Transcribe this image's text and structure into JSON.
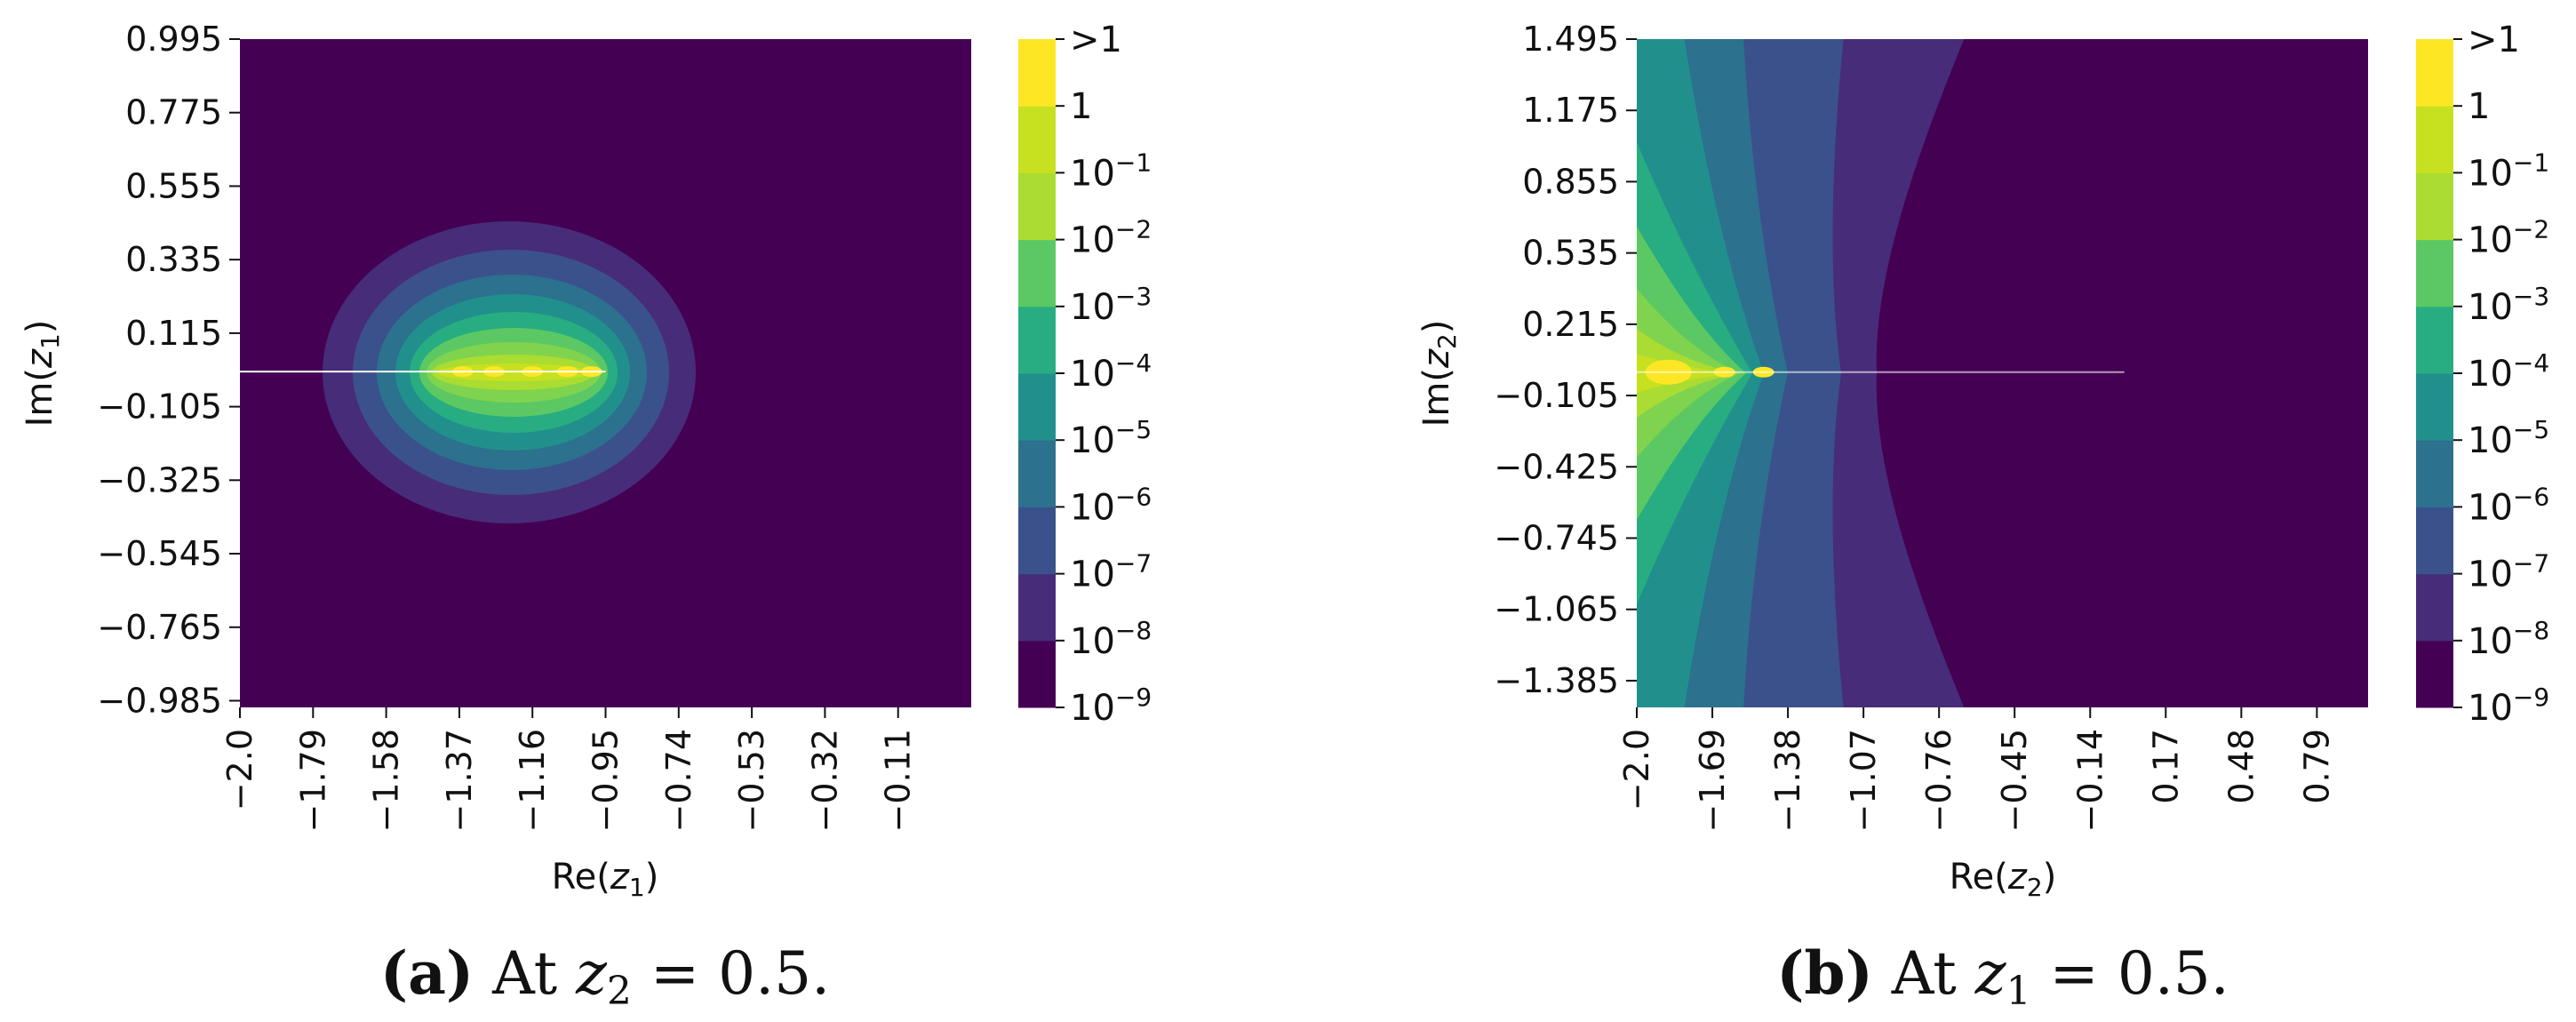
{
  "colormap": [
    "#440154",
    "#472c7a",
    "#3b518b",
    "#2c718e",
    "#21908d",
    "#27ad81",
    "#5cc863",
    "#aadc32",
    "#c7e020",
    "#fde725"
  ],
  "chart_data": [
    {
      "type": "heatmap",
      "panel": "a",
      "xlabel_main": "Re(",
      "xlabel_var": "z",
      "xlabel_sub": "1",
      "xlabel_close": ")",
      "ylabel_main": "Im(",
      "ylabel_var": "z",
      "ylabel_sub": "1",
      "ylabel_close": ")",
      "xlim": [
        -2.0,
        0.1
      ],
      "ylim": [
        -1.005,
        0.995
      ],
      "x_ticks": [
        -2.0,
        -1.79,
        -1.58,
        -1.37,
        -1.16,
        -0.95,
        -0.74,
        -0.53,
        -0.32,
        -0.11
      ],
      "x_tick_labels": [
        "−2.0",
        "−1.79",
        "−1.58",
        "−1.37",
        "−1.16",
        "−0.95",
        "−0.74",
        "−0.53",
        "−0.32",
        "−0.11"
      ],
      "y_ticks": [
        0.995,
        0.775,
        0.555,
        0.335,
        0.115,
        -0.105,
        -0.325,
        -0.545,
        -0.765,
        -0.985
      ],
      "y_tick_labels": [
        "0.995",
        "0.775",
        "0.555",
        "0.335",
        "0.115",
        "−0.105",
        "−0.325",
        "−0.545",
        "−0.765",
        "−0.985"
      ],
      "branch_cut": {
        "x": [
          -2.0,
          -0.95
        ],
        "y": 0.0
      },
      "peaks": [
        {
          "x": -1.36,
          "y": 0.0
        },
        {
          "x": -1.27,
          "y": 0.0
        },
        {
          "x": -1.16,
          "y": 0.0
        },
        {
          "x": -1.06,
          "y": 0.0
        },
        {
          "x": -0.99,
          "y": 0.0
        }
      ],
      "colorbar": {
        "tick_bases": [
          "",
          "",
          "10",
          "10",
          "10",
          "10",
          "10",
          "10",
          "10",
          "10",
          "10"
        ],
        "tick_exps": [
          "",
          "",
          "−1",
          "−2",
          "−3",
          "−4",
          "−5",
          "−6",
          "−7",
          "−8",
          "−9"
        ],
        "tick_plain": [
          ">1",
          "1",
          "",
          "",
          "",
          "",
          "",
          "",
          "",
          "",
          ""
        ]
      },
      "caption": {
        "letter": "(a)",
        "text": " At ",
        "var": "z",
        "sub": "2",
        "rest": " = 0.5."
      }
    },
    {
      "type": "heatmap",
      "panel": "b",
      "xlabel_main": "Re(",
      "xlabel_var": "z",
      "xlabel_sub": "2",
      "xlabel_close": ")",
      "ylabel_main": "Im(",
      "ylabel_var": "z",
      "ylabel_sub": "2",
      "ylabel_close": ")",
      "xlim": [
        -2.0,
        1.0
      ],
      "ylim": [
        -1.505,
        1.495
      ],
      "x_ticks": [
        -2.0,
        -1.69,
        -1.38,
        -1.07,
        -0.76,
        -0.45,
        -0.14,
        0.17,
        0.48,
        0.79
      ],
      "x_tick_labels": [
        "−2.0",
        "−1.69",
        "−1.38",
        "−1.07",
        "−0.76",
        "−0.45",
        "−0.14",
        "0.17",
        "0.48",
        "0.79"
      ],
      "y_ticks": [
        1.495,
        1.175,
        0.855,
        0.535,
        0.215,
        -0.105,
        -0.425,
        -0.745,
        -1.065,
        -1.385
      ],
      "y_tick_labels": [
        "1.495",
        "1.175",
        "0.855",
        "0.535",
        "0.215",
        "−0.105",
        "−0.425",
        "−0.745",
        "−1.065",
        "−1.385"
      ],
      "branch_cut": {
        "x": [
          -2.0,
          0.0
        ],
        "y": 0.0
      },
      "peaks": [
        {
          "x": -1.87,
          "y": 0.0
        },
        {
          "x": -1.64,
          "y": 0.0
        },
        {
          "x": -1.48,
          "y": 0.0
        }
      ],
      "colorbar": {
        "tick_bases": [
          "",
          "",
          "10",
          "10",
          "10",
          "10",
          "10",
          "10",
          "10",
          "10",
          "10"
        ],
        "tick_exps": [
          "",
          "",
          "−1",
          "−2",
          "−3",
          "−4",
          "−5",
          "−6",
          "−7",
          "−8",
          "−9"
        ],
        "tick_plain": [
          ">1",
          "1",
          "",
          "",
          "",
          "",
          "",
          "",
          "",
          "",
          ""
        ]
      },
      "caption": {
        "letter": "(b)",
        "text": " At ",
        "var": "z",
        "sub": "1",
        "rest": " = 0.5."
      }
    }
  ]
}
